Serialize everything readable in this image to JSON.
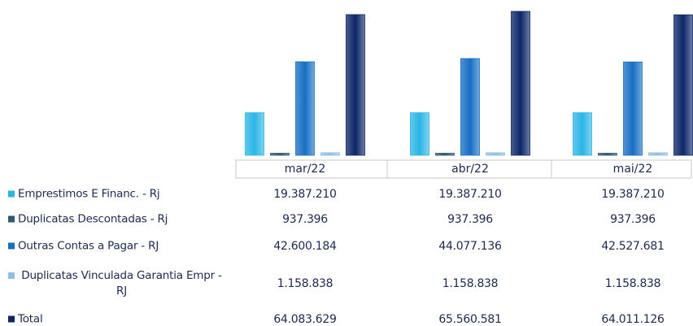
{
  "chart_data": {
    "type": "bar",
    "categories": [
      "mar/22",
      "abr/22",
      "mai/22"
    ],
    "series": [
      {
        "name": "Emprestimos E Financ. - Rj",
        "color": "#2bb5e6",
        "values": [
          19387210,
          19387210,
          19387210
        ],
        "value_labels": [
          "19.387.210",
          "19.387.210",
          "19.387.210"
        ]
      },
      {
        "name": "Duplicatas Descontadas - Rj",
        "color": "#2f5873",
        "values": [
          937396,
          937396,
          937396
        ],
        "value_labels": [
          "937.396",
          "937.396",
          "937.396"
        ]
      },
      {
        "name": "Outras Contas a Pagar - RJ",
        "color": "#176ec4",
        "values": [
          42600184,
          44077136,
          42527681
        ],
        "value_labels": [
          "42.600.184",
          "44.077.136",
          "42.527.681"
        ]
      },
      {
        "name": "Duplicatas Vinculada Garantia Empr - RJ",
        "color": "#8cc0e4",
        "values": [
          1158838,
          1158838,
          1158838
        ],
        "value_labels": [
          "1.158.838",
          "1.158.838",
          "1.158.838"
        ]
      },
      {
        "name": "Total",
        "color": "#0c2668",
        "values": [
          64083629,
          65560581,
          64011126
        ],
        "value_labels": [
          "64.083.629",
          "65.560.581",
          "64.011.126"
        ]
      }
    ]
  }
}
